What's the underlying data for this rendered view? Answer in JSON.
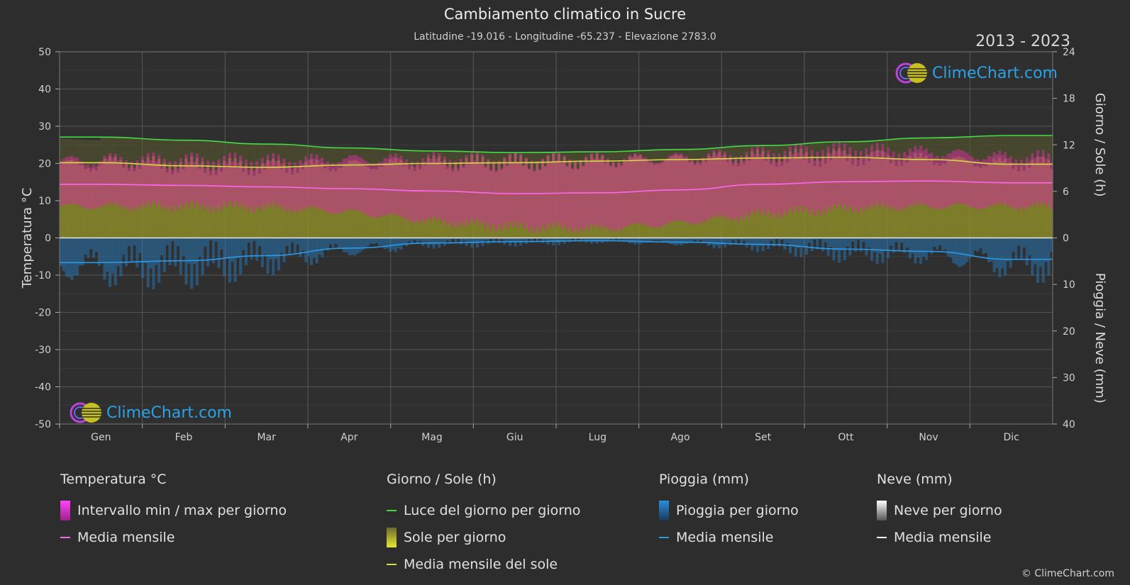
{
  "header": {
    "title": "Cambiamento climatico in Sucre",
    "subtitle": "Latitudine -19.016 - Longitudine -65.237 - Elevazione 2783.0",
    "years": "2013 - 2023"
  },
  "brand": {
    "logo_text": "ClimeChart.com",
    "copyright": "© ClimeChart.com"
  },
  "legend": {
    "temp": {
      "title": "Temperatura °C",
      "items": [
        "Intervallo min / max per giorno",
        "Media mensile"
      ]
    },
    "sun": {
      "title": "Giorno / Sole (h)",
      "items": [
        "Luce del giorno per giorno",
        "Sole per giorno",
        "Media mensile del sole"
      ]
    },
    "rain": {
      "title": "Pioggia (mm)",
      "items": [
        "Pioggia per giorno",
        "Media mensile"
      ]
    },
    "snow": {
      "title": "Neve (mm)",
      "items": [
        "Neve per giorno",
        "Media mensile"
      ]
    }
  },
  "colors": {
    "daylight": "#44dd44",
    "sunshine_mean": "#d8d840",
    "sunshine_fill": "#9a9a28",
    "temp_range": "#d0309a",
    "temp_mean": "#ff66ee",
    "rain": "#2878b8",
    "rain_mean": "#2a9ae6",
    "snow": "#ffffff"
  },
  "chart_data": {
    "type": "line",
    "categories": [
      "Gen",
      "Feb",
      "Mar",
      "Apr",
      "Mag",
      "Giu",
      "Lug",
      "Ago",
      "Set",
      "Ott",
      "Nov",
      "Dic"
    ],
    "left_axis": {
      "label": "Temperatura °C",
      "ylim": [
        -50,
        50
      ],
      "ticks": [
        50,
        40,
        30,
        20,
        10,
        0,
        -10,
        -20,
        -30,
        -40,
        -50
      ]
    },
    "right_axis_top": {
      "label": "Giorno / Sole (h)",
      "ylim": [
        0,
        24
      ],
      "ticks": [
        24,
        18,
        12,
        6,
        0
      ]
    },
    "right_axis_bottom": {
      "label": "Pioggia / Neve (mm)",
      "ylim": [
        0,
        40
      ],
      "ticks": [
        0,
        10,
        20,
        30,
        40
      ]
    },
    "grid": true,
    "series": [
      {
        "name": "Luce del giorno per giorno",
        "axis": "hours",
        "values": [
          13.0,
          12.6,
          12.1,
          11.6,
          11.2,
          11.0,
          11.1,
          11.4,
          11.9,
          12.4,
          12.9,
          13.2
        ]
      },
      {
        "name": "Media mensile del sole",
        "axis": "hours",
        "values": [
          9.7,
          9.3,
          9.1,
          9.4,
          9.6,
          9.7,
          9.9,
          10.1,
          10.3,
          10.4,
          10.1,
          9.5
        ]
      },
      {
        "name": "Media mensile",
        "axis": "temp",
        "values": [
          14.4,
          14.1,
          13.7,
          13.2,
          12.6,
          11.9,
          12.1,
          12.9,
          14.4,
          15.1,
          15.3,
          14.8
        ]
      },
      {
        "name": "Intervallo min / max per giorno",
        "axis": "temp",
        "min": [
          8.5,
          8.5,
          8.3,
          7.0,
          4.5,
          3.0,
          2.5,
          4.0,
          6.5,
          8.0,
          8.5,
          8.5
        ],
        "max": [
          21.0,
          20.5,
          20.5,
          21.0,
          21.0,
          20.5,
          21.0,
          21.5,
          22.5,
          23.5,
          23.0,
          21.5
        ]
      },
      {
        "name": "Pioggia media mensile",
        "axis": "mm",
        "values": [
          5.3,
          4.9,
          3.8,
          2.2,
          1.1,
          0.8,
          0.6,
          0.9,
          1.4,
          2.4,
          2.9,
          4.6
        ]
      }
    ]
  }
}
